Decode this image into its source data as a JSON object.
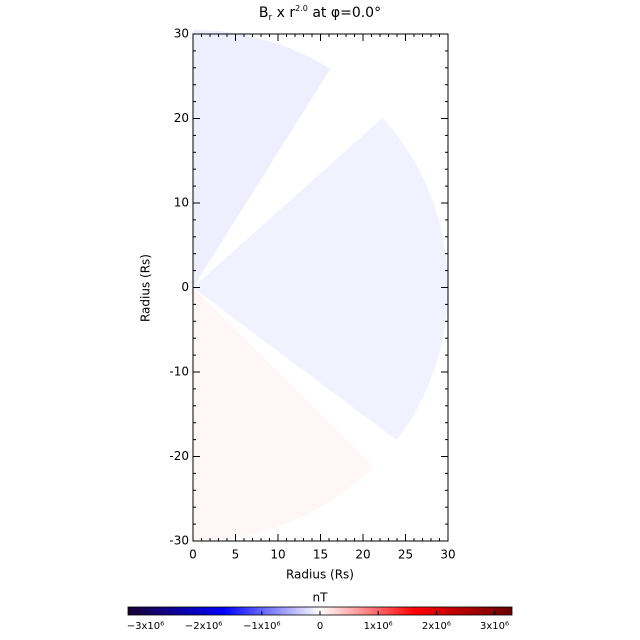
{
  "chart_data": {
    "type": "polar-wedge",
    "title": {
      "base": "B",
      "sub": "r",
      "mid": " x r",
      "sup": "2.0",
      "tail": " at φ=0.0°"
    },
    "xlabel": "Radius (Rs)",
    "ylabel": "Radius (Rs)",
    "xlim": [
      0,
      30
    ],
    "xticks": [
      0,
      5,
      10,
      15,
      20,
      25,
      30
    ],
    "ylim": [
      -30,
      30
    ],
    "yticks": [
      -30,
      -20,
      -10,
      0,
      10,
      20,
      30
    ],
    "sectors": [
      {
        "theta_min": 58,
        "theta_max": 90,
        "r_max": 30.5,
        "value": -110000
      },
      {
        "theta_min": -37,
        "theta_max": 42,
        "r_max": 30,
        "value": -90000
      },
      {
        "theta_min": -90,
        "theta_max": -45,
        "r_max": 30,
        "value": 50000
      }
    ],
    "colorbar": {
      "label": "nT",
      "lim": [
        -3300000,
        3300000
      ],
      "ticks": [
        {
          "value": -3000000,
          "label": "−3x10⁶"
        },
        {
          "value": -2000000,
          "label": "−2x10⁶"
        },
        {
          "value": -1000000,
          "label": "−1x10⁶"
        },
        0,
        {
          "value": 1000000,
          "label": "1x10⁶"
        },
        {
          "value": 2000000,
          "label": "2x10⁶"
        },
        {
          "value": 3000000,
          "label": "3x10⁶"
        }
      ]
    }
  }
}
